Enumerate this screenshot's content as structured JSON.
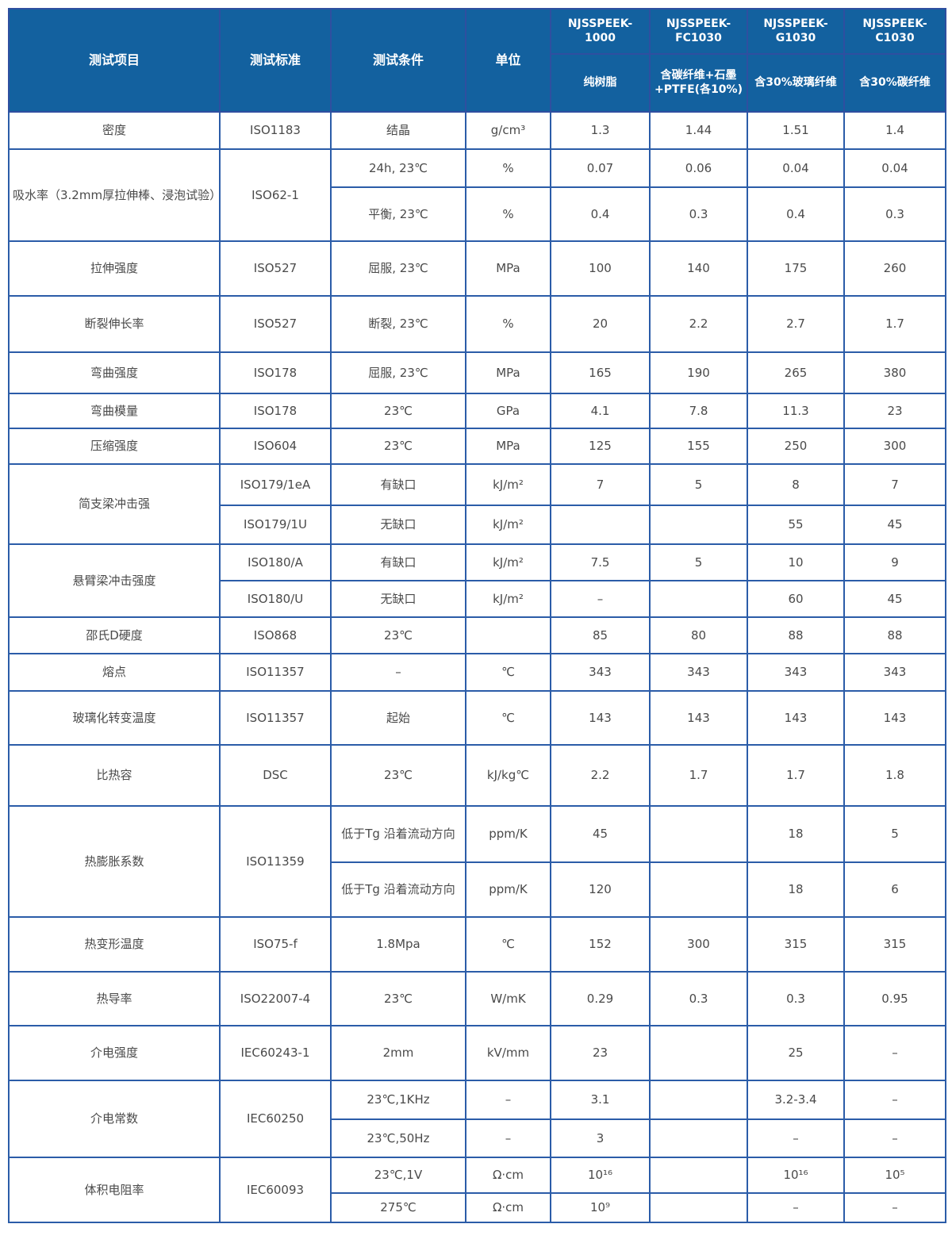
{
  "header": {
    "item": "测试项目",
    "standard": "测试标准",
    "condition": "测试条件",
    "unit": "单位",
    "products": [
      {
        "name": "NJSSPEEK-1000",
        "desc": "纯树脂"
      },
      {
        "name": "NJSSPEEK-FC1030",
        "desc": "含碳纤维+石墨+PTFE(各10%)"
      },
      {
        "name": "NJSSPEEK-G1030",
        "desc": "含30%玻璃纤维"
      },
      {
        "name": "NJSSPEEK-C1030",
        "desc": "含30%碳纤维"
      }
    ]
  },
  "colors": {
    "header_bg": "#13619f",
    "border": "#2b5ca8"
  },
  "rows": [
    {
      "item": "密度",
      "standard": "ISO1183",
      "sub": [
        {
          "condition": "结晶",
          "unit": "g/cm³",
          "values": [
            "1.3",
            "1.44",
            "1.51",
            "1.4"
          ]
        }
      ]
    },
    {
      "item": "吸水率（3.2mm厚拉伸棒、浸泡试验）",
      "standard": "ISO62-1",
      "sub": [
        {
          "condition": "24h, 23℃",
          "unit": "%",
          "values": [
            "0.07",
            "0.06",
            "0.04",
            "0.04"
          ]
        },
        {
          "condition": "平衡, 23℃",
          "unit": "%",
          "values": [
            "0.4",
            "0.3",
            "0.4",
            "0.3"
          ]
        }
      ]
    },
    {
      "item": "拉伸强度",
      "standard": "ISO527",
      "sub": [
        {
          "condition": "屈服, 23℃",
          "unit": "MPa",
          "values": [
            "100",
            "140",
            "175",
            "260"
          ]
        }
      ]
    },
    {
      "item": "断裂伸长率",
      "standard": "ISO527",
      "sub": [
        {
          "condition": "断裂, 23℃",
          "unit": "%",
          "values": [
            "20",
            "2.2",
            "2.7",
            "1.7"
          ]
        }
      ]
    },
    {
      "item": "弯曲强度",
      "standard": "ISO178",
      "sub": [
        {
          "condition": "屈服, 23℃",
          "unit": "MPa",
          "values": [
            "165",
            "190",
            "265",
            "380"
          ]
        }
      ]
    },
    {
      "item": "弯曲模量",
      "standard": "ISO178",
      "sub": [
        {
          "condition": "23℃",
          "unit": "GPa",
          "values": [
            "4.1",
            "7.8",
            "11.3",
            "23"
          ]
        }
      ]
    },
    {
      "item": "压缩强度",
      "standard": "ISO604",
      "sub": [
        {
          "condition": "23℃",
          "unit": "MPa",
          "values": [
            "125",
            "155",
            "250",
            "300"
          ]
        }
      ]
    },
    {
      "item": "简支梁冲击强",
      "standard": null,
      "sub": [
        {
          "standard": "ISO179/1eA",
          "condition": "有缺口",
          "unit": "kJ/m²",
          "values": [
            "7",
            "5",
            "8",
            "7"
          ]
        },
        {
          "standard": "ISO179/1U",
          "condition": "无缺口",
          "unit": "kJ/m²",
          "values": [
            "",
            "",
            "55",
            "45"
          ]
        }
      ]
    },
    {
      "item": "悬臂梁冲击强度",
      "standard": null,
      "sub": [
        {
          "standard": "ISO180/A",
          "condition": "有缺口",
          "unit": "kJ/m²",
          "values": [
            "7.5",
            "5",
            "10",
            "9"
          ]
        },
        {
          "standard": "ISO180/U",
          "condition": "无缺口",
          "unit": "kJ/m²",
          "values": [
            "–",
            "",
            "60",
            "45"
          ]
        }
      ]
    },
    {
      "item": "邵氏D硬度",
      "standard": "ISO868",
      "sub": [
        {
          "condition": "23℃",
          "unit": "",
          "values": [
            "85",
            "80",
            "88",
            "88"
          ]
        }
      ]
    },
    {
      "item": "熔点",
      "standard": "ISO11357",
      "sub": [
        {
          "condition": "–",
          "unit": "℃",
          "values": [
            "343",
            "343",
            "343",
            "343"
          ]
        }
      ]
    },
    {
      "item": "玻璃化转变温度",
      "standard": "ISO11357",
      "sub": [
        {
          "condition": "起始",
          "unit": "℃",
          "values": [
            "143",
            "143",
            "143",
            "143"
          ]
        }
      ]
    },
    {
      "item": "比热容",
      "standard": "DSC",
      "sub": [
        {
          "condition": "23℃",
          "unit": "kJ/kg℃",
          "values": [
            "2.2",
            "1.7",
            "1.7",
            "1.8"
          ]
        }
      ]
    },
    {
      "item": "热膨胀系数",
      "standard": "ISO11359",
      "sub": [
        {
          "condition": "低于Tg 沿着流动方向",
          "unit": "ppm/K",
          "values": [
            "45",
            "",
            "18",
            "5"
          ]
        },
        {
          "condition": "低于Tg 沿着流动方向",
          "unit": "ppm/K",
          "values": [
            "120",
            "",
            "18",
            "6"
          ]
        }
      ]
    },
    {
      "item": "热变形温度",
      "standard": "ISO75-f",
      "sub": [
        {
          "condition": "1.8Mpa",
          "unit": "℃",
          "values": [
            "152",
            "300",
            "315",
            "315"
          ]
        }
      ]
    },
    {
      "item": "热导率",
      "standard": "ISO22007-4",
      "sub": [
        {
          "condition": "23℃",
          "unit": "W/mK",
          "values": [
            "0.29",
            "0.3",
            "0.3",
            "0.95"
          ]
        }
      ]
    },
    {
      "item": "介电强度",
      "standard": "IEC60243-1",
      "sub": [
        {
          "condition": "2mm",
          "unit": "kV/mm",
          "values": [
            "23",
            "",
            "25",
            "–"
          ]
        }
      ]
    },
    {
      "item": "介电常数",
      "standard": "IEC60250",
      "sub": [
        {
          "condition": "23℃,1KHz",
          "unit": "–",
          "values": [
            "3.1",
            "",
            "3.2-3.4",
            "–"
          ]
        },
        {
          "condition": "23℃,50Hz",
          "unit": "–",
          "values": [
            "3",
            "",
            "–",
            "–"
          ]
        }
      ]
    },
    {
      "item": "体积电阻率",
      "standard": "IEC60093",
      "sub": [
        {
          "condition": "23℃,1V",
          "unit": "Ω·cm",
          "values": [
            "10¹⁶",
            "",
            "10¹⁶",
            "10⁵"
          ]
        },
        {
          "condition": "275℃",
          "unit": "Ω·cm",
          "values": [
            "10⁹",
            "",
            "–",
            "–"
          ]
        }
      ]
    }
  ]
}
